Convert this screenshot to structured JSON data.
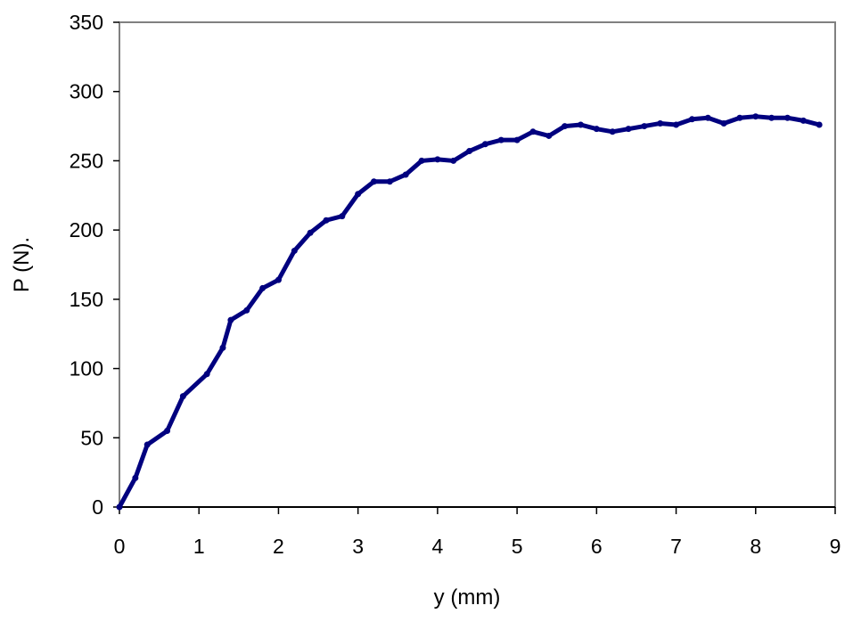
{
  "chart_data": {
    "type": "line",
    "title": "",
    "xlabel": "y (mm)",
    "ylabel": "P (N).",
    "xlim": [
      0,
      9
    ],
    "ylim": [
      0,
      350
    ],
    "xticks": [
      0,
      1,
      2,
      3,
      4,
      5,
      6,
      7,
      8,
      9
    ],
    "yticks": [
      0,
      50,
      100,
      150,
      200,
      250,
      300,
      350
    ],
    "grid": false,
    "legend": "none",
    "line_color": "#00007f",
    "x": [
      0,
      0.2,
      0.35,
      0.6,
      0.8,
      1.1,
      1.3,
      1.4,
      1.6,
      1.8,
      2.0,
      2.2,
      2.4,
      2.6,
      2.8,
      3.0,
      3.2,
      3.4,
      3.6,
      3.8,
      4.0,
      4.2,
      4.4,
      4.6,
      4.8,
      5.0,
      5.2,
      5.4,
      5.6,
      5.8,
      6.0,
      6.2,
      6.4,
      6.6,
      6.8,
      7.0,
      7.2,
      7.4,
      7.6,
      7.8,
      8.0,
      8.2,
      8.4,
      8.6,
      8.8
    ],
    "y": [
      0,
      21,
      45,
      55,
      80,
      96,
      115,
      135,
      142,
      158,
      164,
      185,
      198,
      207,
      210,
      226,
      235,
      235,
      240,
      250,
      251,
      250,
      257,
      262,
      265,
      265,
      271,
      268,
      275,
      276,
      273,
      271,
      273,
      275,
      277,
      276,
      280,
      281,
      277,
      281,
      282,
      281,
      281,
      279,
      276
    ]
  }
}
